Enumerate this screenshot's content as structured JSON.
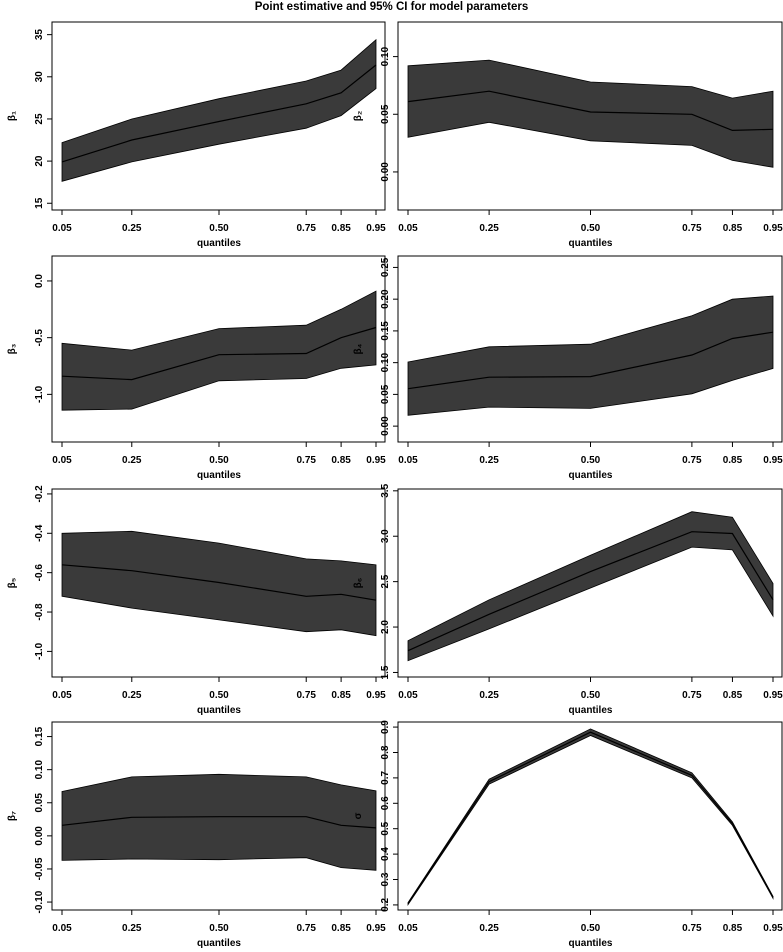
{
  "figure_title": "Point estimative and 95% CI for model parameters",
  "colors": {
    "band": "#3a3a3a",
    "line": "#000000",
    "axis": "#000000"
  },
  "chart_data": [
    {
      "type": "line",
      "id": "beta1",
      "ylabel": "β₁",
      "xlabel": "quantiles",
      "x": [
        0.05,
        0.25,
        0.5,
        0.75,
        0.85,
        0.95
      ],
      "x_ticks": [
        "0.05",
        "0.25",
        "0.50",
        "0.75",
        "0.85",
        "0.95"
      ],
      "ylim": [
        14.2,
        36.5
      ],
      "y_ticks": [
        15,
        20,
        25,
        30,
        35
      ],
      "y_tick_labels": [
        "15",
        "20",
        "25",
        "30",
        "35"
      ],
      "estimate": [
        19.9,
        22.5,
        24.7,
        26.8,
        28.1,
        31.4
      ],
      "lower": [
        17.6,
        19.9,
        22.0,
        23.9,
        25.4,
        28.6
      ],
      "upper": [
        22.2,
        25.0,
        27.4,
        29.5,
        30.8,
        34.4
      ]
    },
    {
      "type": "line",
      "id": "beta2",
      "ylabel": "β₂",
      "xlabel": "quantiles",
      "x": [
        0.05,
        0.25,
        0.5,
        0.75,
        0.85,
        0.95
      ],
      "x_ticks": [
        "0.05",
        "0.25",
        "0.50",
        "0.75",
        "0.85",
        "0.95"
      ],
      "ylim": [
        -0.033,
        0.13
      ],
      "y_ticks": [
        0.0,
        0.05,
        0.1
      ],
      "y_tick_labels": [
        "0.00",
        "0.05",
        "0.10"
      ],
      "estimate": [
        0.061,
        0.07,
        0.052,
        0.05,
        0.036,
        0.037
      ],
      "lower": [
        0.03,
        0.043,
        0.027,
        0.023,
        0.01,
        0.004
      ],
      "upper": [
        0.092,
        0.097,
        0.078,
        0.074,
        0.064,
        0.07
      ]
    },
    {
      "type": "line",
      "id": "beta3",
      "ylabel": "β₃",
      "xlabel": "quantiles",
      "x": [
        0.05,
        0.25,
        0.5,
        0.75,
        0.85,
        0.95
      ],
      "x_ticks": [
        "0.05",
        "0.25",
        "0.50",
        "0.75",
        "0.85",
        "0.95"
      ],
      "ylim": [
        -1.42,
        0.22
      ],
      "y_ticks": [
        -1.0,
        -0.5,
        0.0
      ],
      "y_tick_labels": [
        "-1.0",
        "-0.5",
        "0.0"
      ],
      "estimate": [
        -0.84,
        -0.87,
        -0.65,
        -0.64,
        -0.5,
        -0.41
      ],
      "lower": [
        -1.14,
        -1.13,
        -0.88,
        -0.86,
        -0.77,
        -0.74
      ],
      "upper": [
        -0.55,
        -0.61,
        -0.42,
        -0.39,
        -0.25,
        -0.09
      ]
    },
    {
      "type": "line",
      "id": "beta4",
      "ylabel": "β₄",
      "xlabel": "quantiles",
      "x": [
        0.05,
        0.25,
        0.5,
        0.75,
        0.85,
        0.95
      ],
      "x_ticks": [
        "0.05",
        "0.25",
        "0.50",
        "0.75",
        "0.85",
        "0.95"
      ],
      "ylim": [
        -0.025,
        0.268
      ],
      "y_ticks": [
        0.0,
        0.05,
        0.1,
        0.15,
        0.2,
        0.25
      ],
      "y_tick_labels": [
        "0.00",
        "0.05",
        "0.10",
        "0.15",
        "0.20",
        "0.25"
      ],
      "estimate": [
        0.059,
        0.077,
        0.078,
        0.112,
        0.138,
        0.148
      ],
      "lower": [
        0.017,
        0.03,
        0.028,
        0.051,
        0.072,
        0.091
      ],
      "upper": [
        0.101,
        0.125,
        0.129,
        0.174,
        0.2,
        0.205
      ]
    },
    {
      "type": "line",
      "id": "beta5",
      "ylabel": "β₅",
      "xlabel": "quantiles",
      "x": [
        0.05,
        0.25,
        0.5,
        0.75,
        0.85,
        0.95
      ],
      "x_ticks": [
        "0.05",
        "0.25",
        "0.50",
        "0.75",
        "0.85",
        "0.95"
      ],
      "ylim": [
        -1.13,
        -0.175
      ],
      "y_ticks": [
        -1.0,
        -0.8,
        -0.6,
        -0.4,
        -0.2
      ],
      "y_tick_labels": [
        "-1.0",
        "-0.8",
        "-0.6",
        "-0.4",
        "-0.2"
      ],
      "estimate": [
        -0.56,
        -0.59,
        -0.65,
        -0.72,
        -0.71,
        -0.74
      ],
      "lower": [
        -0.72,
        -0.78,
        -0.84,
        -0.9,
        -0.89,
        -0.92
      ],
      "upper": [
        -0.4,
        -0.39,
        -0.45,
        -0.53,
        -0.54,
        -0.56
      ]
    },
    {
      "type": "line",
      "id": "beta6",
      "ylabel": "β₆",
      "xlabel": "quantiles",
      "x": [
        0.05,
        0.25,
        0.5,
        0.75,
        0.85,
        0.95
      ],
      "x_ticks": [
        "0.05",
        "0.25",
        "0.50",
        "0.75",
        "0.85",
        "0.95"
      ],
      "ylim": [
        1.45,
        3.52
      ],
      "y_ticks": [
        1.5,
        2.0,
        2.5,
        3.0,
        3.5
      ],
      "y_tick_labels": [
        "1.5",
        "2.0",
        "2.5",
        "3.0",
        "3.5"
      ],
      "estimate": [
        1.74,
        2.14,
        2.61,
        3.05,
        3.03,
        2.3
      ],
      "lower": [
        1.63,
        1.98,
        2.43,
        2.88,
        2.85,
        2.12
      ],
      "upper": [
        1.85,
        2.3,
        2.79,
        3.27,
        3.21,
        2.48
      ]
    },
    {
      "type": "line",
      "id": "beta7",
      "ylabel": "β₇",
      "xlabel": "quantiles",
      "x": [
        0.05,
        0.25,
        0.5,
        0.75,
        0.85,
        0.95
      ],
      "x_ticks": [
        "0.05",
        "0.25",
        "0.50",
        "0.75",
        "0.85",
        "0.95"
      ],
      "ylim": [
        -0.112,
        0.172
      ],
      "y_ticks": [
        -0.1,
        -0.05,
        0.0,
        0.05,
        0.1,
        0.15
      ],
      "y_tick_labels": [
        "-0.10",
        "-0.05",
        "0.00",
        "0.05",
        "0.10",
        "0.15"
      ],
      "estimate": [
        0.016,
        0.028,
        0.029,
        0.029,
        0.016,
        0.012
      ],
      "lower": [
        -0.037,
        -0.035,
        -0.036,
        -0.033,
        -0.048,
        -0.052
      ],
      "upper": [
        0.067,
        0.089,
        0.093,
        0.089,
        0.077,
        0.068
      ]
    },
    {
      "type": "line",
      "id": "sigma",
      "ylabel": "σ",
      "xlabel": "quantiles",
      "x": [
        0.05,
        0.25,
        0.5,
        0.75,
        0.85,
        0.95
      ],
      "x_ticks": [
        "0.05",
        "0.25",
        "0.50",
        "0.75",
        "0.85",
        "0.95"
      ],
      "ylim": [
        0.18,
        0.92
      ],
      "y_ticks": [
        0.2,
        0.3,
        0.4,
        0.5,
        0.6,
        0.7,
        0.8,
        0.9
      ],
      "y_tick_labels": [
        "0.2",
        "0.3",
        "0.4",
        "0.5",
        "0.6",
        "0.7",
        "0.8",
        "0.9"
      ],
      "estimate": [
        0.205,
        0.685,
        0.88,
        0.71,
        0.52,
        0.23
      ],
      "lower": [
        0.201,
        0.675,
        0.867,
        0.7,
        0.513,
        0.226
      ],
      "upper": [
        0.209,
        0.695,
        0.893,
        0.72,
        0.527,
        0.234
      ]
    }
  ]
}
